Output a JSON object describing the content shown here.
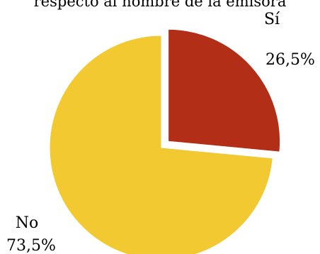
{
  "chart_data": {
    "type": "pie",
    "title": "respecto al nombre de la emisora",
    "categories": [
      "Sí",
      "No"
    ],
    "values": [
      26.5,
      73.5
    ],
    "value_labels": [
      "26,5%",
      "73,5%"
    ],
    "colors": [
      "#b32e17",
      "#f2c930"
    ],
    "exploded": [
      true,
      false
    ],
    "label_positions": [
      "top-right",
      "bottom-left"
    ]
  }
}
